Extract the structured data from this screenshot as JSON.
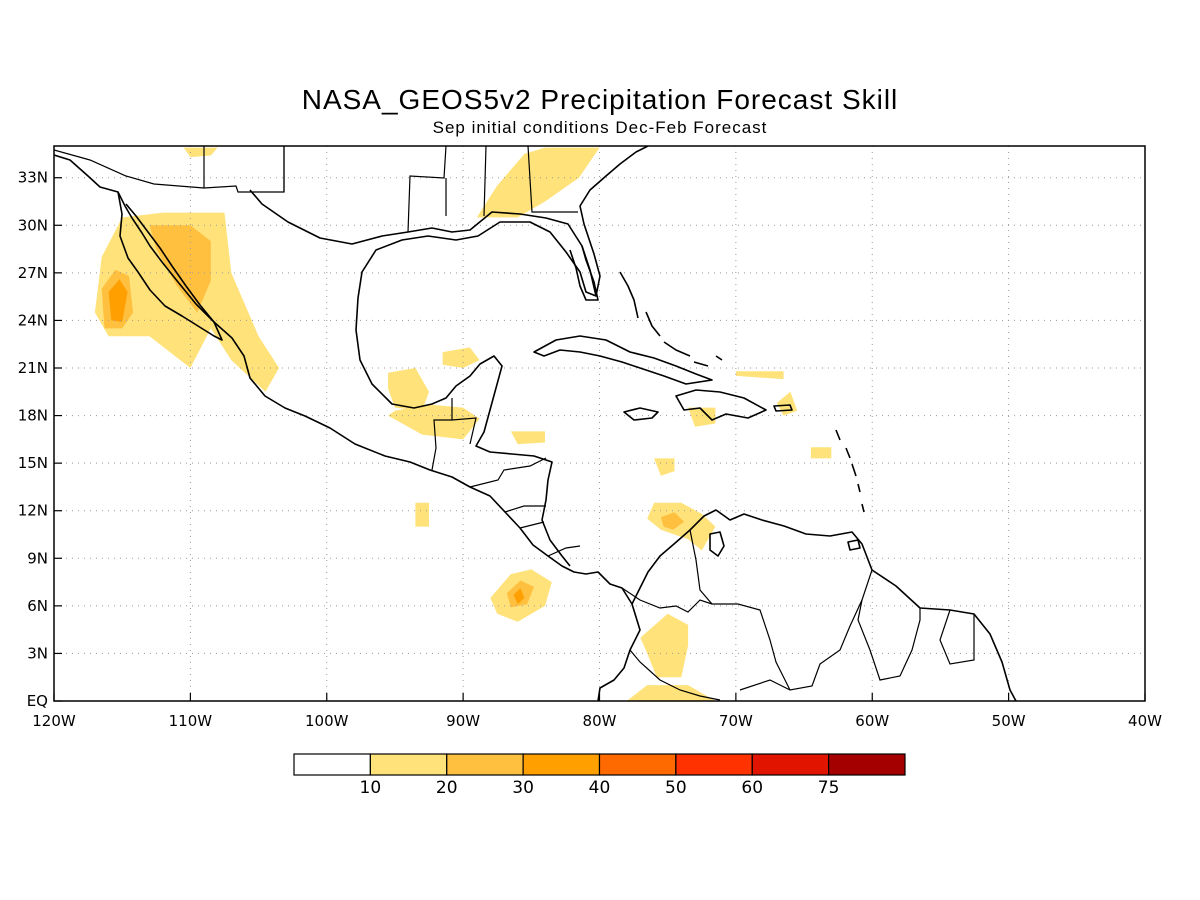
{
  "title": "NASA_GEOS5v2 Precipitation Forecast Skill",
  "subtitle": "Sep initial conditions  Dec-Feb Forecast",
  "map": {
    "lon_range": [
      -120,
      -40
    ],
    "lat_range": [
      0,
      35
    ],
    "lon_ticks": [
      {
        "value": -120,
        "label": "120W"
      },
      {
        "value": -110,
        "label": "110W"
      },
      {
        "value": -100,
        "label": "100W"
      },
      {
        "value": -90,
        "label": "90W"
      },
      {
        "value": -80,
        "label": "80W"
      },
      {
        "value": -70,
        "label": "70W"
      },
      {
        "value": -60,
        "label": "60W"
      },
      {
        "value": -50,
        "label": "50W"
      },
      {
        "value": -40,
        "label": "40W"
      }
    ],
    "lat_ticks": [
      {
        "value": 0,
        "label": "EQ"
      },
      {
        "value": 3,
        "label": "3N"
      },
      {
        "value": 6,
        "label": "6N"
      },
      {
        "value": 9,
        "label": "9N"
      },
      {
        "value": 12,
        "label": "12N"
      },
      {
        "value": 15,
        "label": "15N"
      },
      {
        "value": 18,
        "label": "18N"
      },
      {
        "value": 21,
        "label": "21N"
      },
      {
        "value": 24,
        "label": "24N"
      },
      {
        "value": 27,
        "label": "27N"
      },
      {
        "value": 30,
        "label": "30N"
      },
      {
        "value": 33,
        "label": "33N"
      }
    ],
    "grid": true
  },
  "colorbar": {
    "labels": [
      "10",
      "20",
      "30",
      "40",
      "50",
      "60",
      "75"
    ],
    "colors": [
      "#ffffff",
      "#ffe27a",
      "#ffc040",
      "#ffa000",
      "#ff6a00",
      "#ff3200",
      "#e11400",
      "#a50000"
    ]
  },
  "skill_regions": [
    {
      "level": 1,
      "points": [
        [
          -116.5,
          28
        ],
        [
          -115,
          30.5
        ],
        [
          -112,
          30.8
        ],
        [
          -107.5,
          30.8
        ],
        [
          -107,
          27
        ],
        [
          -105,
          23
        ],
        [
          -103.5,
          21
        ],
        [
          -104.5,
          19.5
        ],
        [
          -107,
          21.5
        ],
        [
          -108.5,
          23.5
        ],
        [
          -110,
          21
        ],
        [
          -113,
          23
        ],
        [
          -116,
          23
        ],
        [
          -117,
          24.5
        ]
      ]
    },
    {
      "level": 2,
      "points": [
        [
          -113,
          30
        ],
        [
          -110,
          30
        ],
        [
          -108.5,
          29
        ],
        [
          -108.5,
          26.5
        ],
        [
          -109.5,
          24.5
        ],
        [
          -111,
          26.2
        ],
        [
          -112.5,
          28.5
        ]
      ]
    },
    {
      "level": 2,
      "points": [
        [
          -116.5,
          26
        ],
        [
          -115.5,
          27.2
        ],
        [
          -114.5,
          26.8
        ],
        [
          -114.2,
          24.5
        ],
        [
          -115,
          23.5
        ],
        [
          -116.3,
          23.5
        ]
      ]
    },
    {
      "level": 3,
      "points": [
        [
          -116,
          25.8
        ],
        [
          -115.2,
          26.6
        ],
        [
          -114.6,
          25.8
        ],
        [
          -115,
          23.9
        ],
        [
          -115.8,
          24
        ]
      ]
    },
    {
      "level": 1,
      "points": [
        [
          -110.5,
          34.9
        ],
        [
          -108,
          34.9
        ],
        [
          -108.5,
          34.4
        ],
        [
          -110,
          34.3
        ]
      ]
    },
    {
      "level": 1,
      "points": [
        [
          -89,
          30.5
        ],
        [
          -87.5,
          32.5
        ],
        [
          -85.5,
          34.5
        ],
        [
          -84,
          34.9
        ],
        [
          -80,
          34.9
        ],
        [
          -81.5,
          33
        ],
        [
          -84,
          31.5
        ],
        [
          -86,
          30.5
        ]
      ]
    },
    {
      "level": 1,
      "points": [
        [
          -95.5,
          20.7
        ],
        [
          -93.5,
          21
        ],
        [
          -92.5,
          19.5
        ],
        [
          -93,
          18.3
        ],
        [
          -95,
          18.5
        ],
        [
          -95.5,
          19.7
        ]
      ]
    },
    {
      "level": 1,
      "points": [
        [
          -95.5,
          18
        ],
        [
          -93,
          16.8
        ],
        [
          -90,
          16.5
        ],
        [
          -88.8,
          17.8
        ],
        [
          -90,
          18.5
        ],
        [
          -92.5,
          18.7
        ],
        [
          -95,
          18.3
        ]
      ]
    },
    {
      "level": 1,
      "points": [
        [
          -91.5,
          22
        ],
        [
          -89.5,
          22.3
        ],
        [
          -88.8,
          21.5
        ],
        [
          -90,
          21
        ],
        [
          -91.5,
          21.2
        ]
      ]
    },
    {
      "level": 1,
      "points": [
        [
          -88,
          6.5
        ],
        [
          -86.5,
          8
        ],
        [
          -85,
          8.3
        ],
        [
          -83.5,
          7.5
        ],
        [
          -84,
          6
        ],
        [
          -86,
          5
        ],
        [
          -87.5,
          5.5
        ]
      ]
    },
    {
      "level": 2,
      "points": [
        [
          -86.8,
          6.8
        ],
        [
          -85.8,
          7.6
        ],
        [
          -84.8,
          7.2
        ],
        [
          -85.3,
          6.1
        ],
        [
          -86.5,
          5.9
        ]
      ]
    },
    {
      "level": 3,
      "points": [
        [
          -86.3,
          6.7
        ],
        [
          -85.8,
          7.1
        ],
        [
          -85.5,
          6.5
        ],
        [
          -86,
          6.1
        ]
      ]
    },
    {
      "level": 1,
      "points": [
        [
          -93.5,
          12.5
        ],
        [
          -92.5,
          12.5
        ],
        [
          -92.5,
          11
        ],
        [
          -93.5,
          11
        ]
      ]
    },
    {
      "level": 1,
      "points": [
        [
          -76,
          12.5
        ],
        [
          -74,
          12.5
        ],
        [
          -72.5,
          11.8
        ],
        [
          -71.5,
          11
        ],
        [
          -72.5,
          9.5
        ],
        [
          -73.5,
          10.2
        ],
        [
          -75.5,
          10.8
        ],
        [
          -76.5,
          11.5
        ]
      ]
    },
    {
      "level": 2,
      "points": [
        [
          -75.5,
          11.6
        ],
        [
          -74.5,
          11.9
        ],
        [
          -73.8,
          11.3
        ],
        [
          -74.6,
          10.8
        ],
        [
          -75.3,
          11
        ]
      ]
    },
    {
      "level": 1,
      "points": [
        [
          -77,
          4
        ],
        [
          -75,
          5.5
        ],
        [
          -73.5,
          4.8
        ],
        [
          -73.5,
          3.5
        ],
        [
          -74,
          1.5
        ],
        [
          -75.8,
          1.5
        ],
        [
          -76.5,
          3
        ]
      ]
    },
    {
      "level": 1,
      "points": [
        [
          -78,
          0
        ],
        [
          -76.5,
          1
        ],
        [
          -73.5,
          1
        ],
        [
          -71.5,
          0
        ]
      ]
    },
    {
      "level": 1,
      "points": [
        [
          -76,
          15.3
        ],
        [
          -74.5,
          15.3
        ],
        [
          -74.5,
          14.5
        ],
        [
          -75.5,
          14.2
        ]
      ]
    },
    {
      "level": 1,
      "points": [
        [
          -64.5,
          16
        ],
        [
          -63,
          16
        ],
        [
          -63,
          15.3
        ],
        [
          -64.5,
          15.3
        ]
      ]
    },
    {
      "level": 1,
      "points": [
        [
          -67,
          18.8
        ],
        [
          -66,
          19.5
        ],
        [
          -65.5,
          18.3
        ],
        [
          -66.5,
          18
        ]
      ]
    },
    {
      "level": 1,
      "points": [
        [
          -73.5,
          18.5
        ],
        [
          -71.5,
          18.5
        ],
        [
          -71.5,
          17.5
        ],
        [
          -73,
          17.3
        ]
      ]
    },
    {
      "level": 1,
      "points": [
        [
          -70,
          20.8
        ],
        [
          -66.5,
          20.8
        ],
        [
          -66.5,
          20.3
        ],
        [
          -70,
          20.5
        ]
      ]
    },
    {
      "level": 1,
      "points": [
        [
          -86.5,
          17
        ],
        [
          -84,
          17
        ],
        [
          -84,
          16.3
        ],
        [
          -86,
          16.2
        ]
      ]
    }
  ]
}
